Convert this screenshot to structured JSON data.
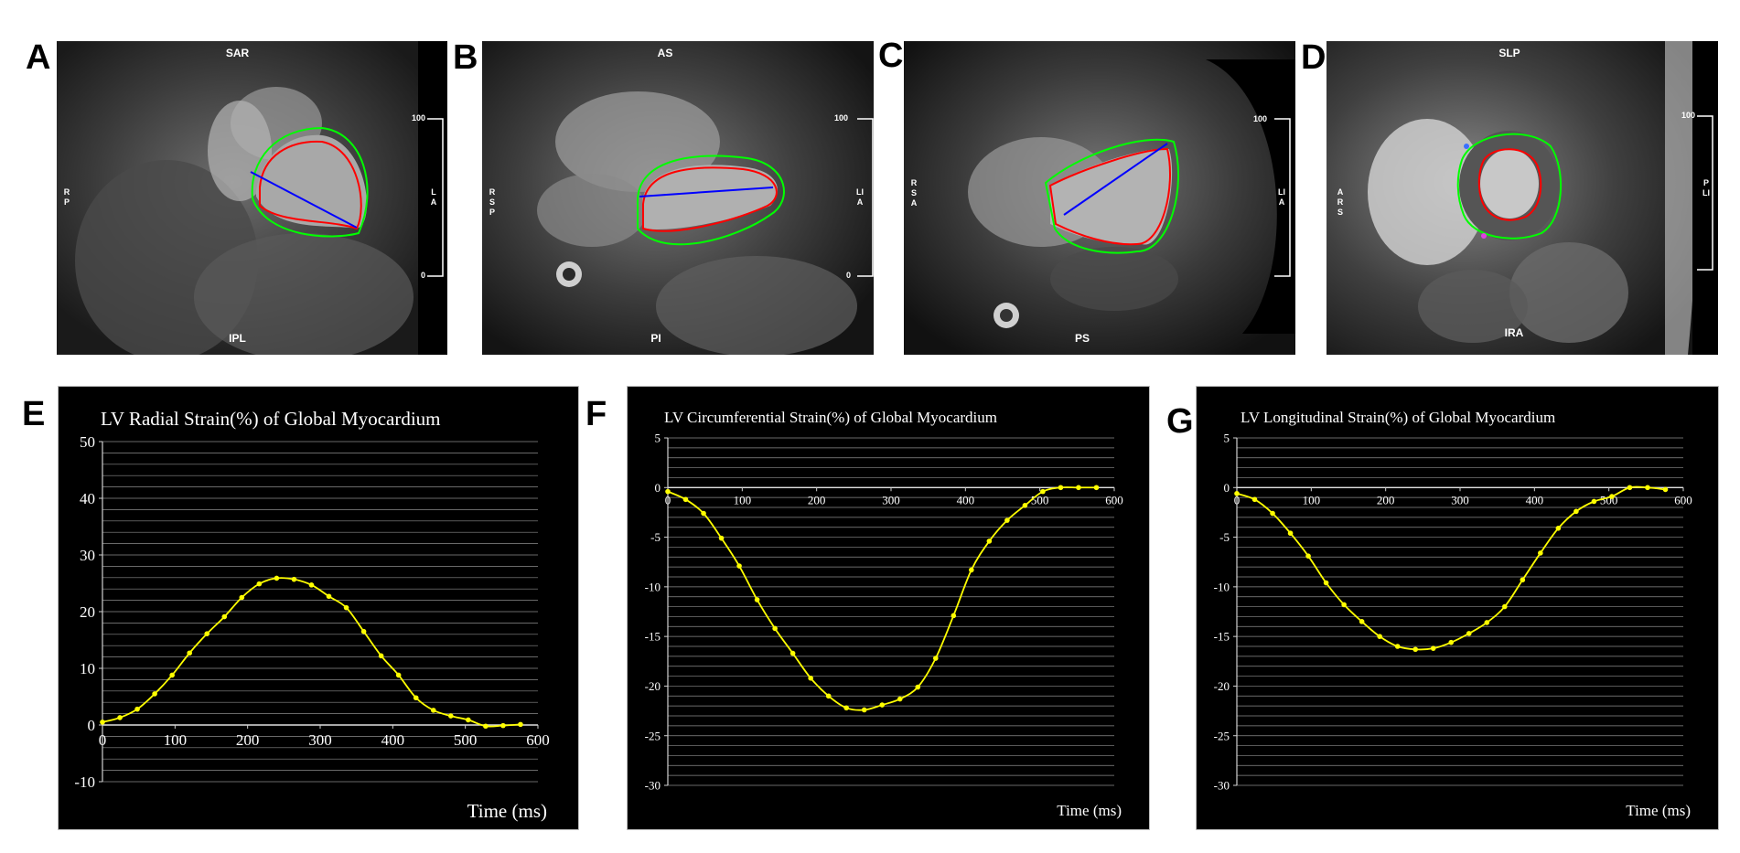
{
  "panels": {
    "A": {
      "letter": "A",
      "top": "SAR",
      "bottom": "IPL",
      "left": "RP",
      "right": "LA",
      "scale_top": "100",
      "scale_bottom": "0"
    },
    "B": {
      "letter": "B",
      "top": "AS",
      "bottom": "PI",
      "left": "RSP",
      "right": "LIA",
      "scale_top": "100",
      "scale_bottom": "0"
    },
    "C": {
      "letter": "C",
      "top": "",
      "bottom": "PS",
      "left": "RSA",
      "right": "LIA",
      "scale_top": "100",
      "scale_bottom": ""
    },
    "D": {
      "letter": "D",
      "top": "SLP",
      "bottom": "IRA",
      "left": "ARS",
      "right": "PLI",
      "scale_top": "100",
      "scale_bottom": ""
    },
    "E": {
      "letter": "E"
    },
    "F": {
      "letter": "F"
    },
    "G": {
      "letter": "G"
    }
  },
  "colors": {
    "curve": "#ffff00",
    "endocardium": "#ff0000",
    "epicardium": "#00ff00",
    "long_axis": "#0000ff",
    "chart_bg": "#000000",
    "grid": "#8c8c8c"
  },
  "chart_data": [
    {
      "type": "line",
      "title": "LV Radial Strain(%) of Global Myocardium",
      "xlabel": "Time (ms)",
      "ylabel": "",
      "xlim": [
        0,
        600
      ],
      "ylim": [
        -10,
        50
      ],
      "x_ticks": [
        0,
        100,
        200,
        300,
        400,
        500,
        600
      ],
      "y_ticks": [
        -10,
        0,
        10,
        20,
        30,
        40,
        50
      ],
      "grid": true,
      "series": [
        {
          "x": [
            0,
            24,
            48,
            72,
            96,
            120,
            144,
            168,
            192,
            216,
            240,
            264,
            288,
            312,
            336,
            360,
            384,
            408,
            432,
            456,
            480,
            504,
            528,
            552,
            576
          ],
          "y": [
            0.5,
            1.3,
            2.8,
            5.5,
            8.8,
            12.7,
            16.1,
            19.1,
            22.5,
            24.9,
            25.9,
            25.7,
            24.7,
            22.7,
            20.7,
            16.5,
            12.2,
            8.8,
            4.8,
            2.6,
            1.6,
            0.9,
            -0.2,
            -0.1,
            0.1
          ]
        }
      ]
    },
    {
      "type": "line",
      "title": "LV Circumferential Strain(%) of Global Myocardium",
      "xlabel": "Time (ms)",
      "ylabel": "",
      "xlim": [
        0,
        600
      ],
      "ylim": [
        -30,
        5
      ],
      "x_ticks": [
        0,
        100,
        200,
        300,
        400,
        500,
        600
      ],
      "y_ticks": [
        -30,
        -25,
        -20,
        -15,
        -10,
        -5,
        0,
        5
      ],
      "grid": true,
      "series": [
        {
          "x": [
            0,
            24,
            48,
            72,
            96,
            120,
            144,
            168,
            192,
            216,
            240,
            264,
            288,
            312,
            336,
            360,
            384,
            408,
            432,
            456,
            480,
            504,
            528,
            552,
            576
          ],
          "y": [
            -0.4,
            -1.2,
            -2.6,
            -5.1,
            -7.9,
            -11.3,
            -14.2,
            -16.7,
            -19.2,
            -21.0,
            -22.2,
            -22.4,
            -21.9,
            -21.3,
            -20.1,
            -17.2,
            -12.9,
            -8.3,
            -5.4,
            -3.3,
            -1.8,
            -0.4,
            0.0,
            0.0,
            0.0
          ]
        }
      ]
    },
    {
      "type": "line",
      "title": "LV Longitudinal Strain(%) of Global Myocardium",
      "xlabel": "Time (ms)",
      "ylabel": "",
      "xlim": [
        0,
        600
      ],
      "ylim": [
        -30,
        5
      ],
      "x_ticks": [
        0,
        100,
        200,
        300,
        400,
        500,
        600
      ],
      "y_ticks": [
        -30,
        -25,
        -20,
        -15,
        -10,
        -5,
        0,
        5
      ],
      "grid": true,
      "series": [
        {
          "x": [
            0,
            24,
            48,
            72,
            96,
            120,
            144,
            168,
            192,
            216,
            240,
            264,
            288,
            312,
            336,
            360,
            384,
            408,
            432,
            456,
            480,
            504,
            528,
            552,
            576
          ],
          "y": [
            -0.6,
            -1.2,
            -2.6,
            -4.6,
            -6.9,
            -9.6,
            -11.8,
            -13.5,
            -15.0,
            -16.0,
            -16.3,
            -16.2,
            -15.6,
            -14.7,
            -13.6,
            -12.0,
            -9.3,
            -6.6,
            -4.1,
            -2.4,
            -1.4,
            -0.9,
            0.0,
            0.0,
            -0.2
          ]
        }
      ]
    }
  ]
}
